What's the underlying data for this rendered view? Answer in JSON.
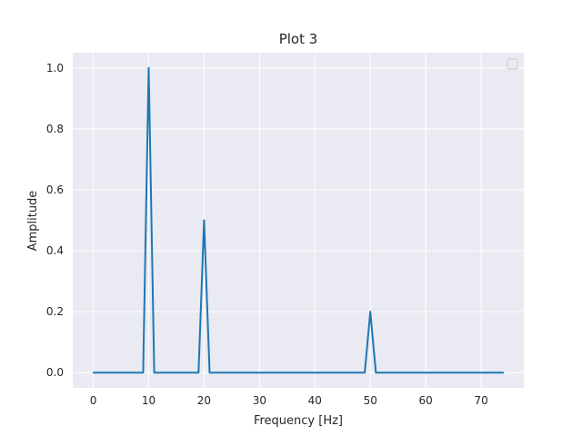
{
  "chart_data": {
    "type": "line",
    "title": "Plot 3",
    "xlabel": "Frequency [Hz]",
    "ylabel": "Amplitude",
    "xlim": [
      -3.7,
      77.7
    ],
    "ylim": [
      -0.05,
      1.05
    ],
    "xticks": [
      "0",
      "10",
      "20",
      "30",
      "40",
      "50",
      "60",
      "70"
    ],
    "yticks": [
      "0.0",
      "0.2",
      "0.4",
      "0.6",
      "0.8",
      "1.0"
    ],
    "grid": true,
    "legend": "top-right (empty)",
    "colors": {
      "background": "#eaeaf2",
      "grid": "#ffffff",
      "line": "#1f77b4"
    },
    "series": [
      {
        "x": [
          0,
          9,
          10,
          11,
          19,
          20,
          21,
          49,
          50,
          51,
          74
        ],
        "y": [
          0,
          0,
          1.0,
          0,
          0,
          0.5,
          0,
          0,
          0.2,
          0,
          0
        ]
      }
    ]
  }
}
